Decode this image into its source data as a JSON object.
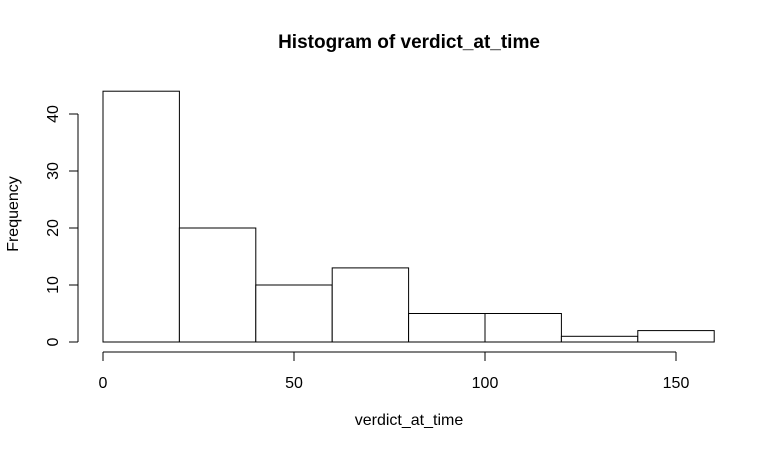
{
  "chart_data": {
    "type": "bar",
    "title": "Histogram of verdict_at_time",
    "xlabel": "verdict_at_time",
    "ylabel": "Frequency",
    "bin_edges": [
      0,
      20,
      40,
      60,
      80,
      100,
      120,
      140,
      160
    ],
    "values": [
      44,
      20,
      10,
      13,
      5,
      5,
      1,
      2
    ],
    "xlim": [
      0,
      160
    ],
    "ylim": [
      0,
      44
    ],
    "x_ticks": [
      0,
      50,
      100,
      150
    ],
    "x_tick_labels": [
      "0",
      "50",
      "100",
      "150"
    ],
    "y_ticks": [
      0,
      10,
      20,
      30,
      40
    ],
    "y_tick_labels": [
      "0",
      "10",
      "20",
      "30",
      "40"
    ],
    "grid": false,
    "legend": "none",
    "colors": {
      "bar_fill": "#ffffff",
      "bar_stroke": "#000000"
    }
  }
}
